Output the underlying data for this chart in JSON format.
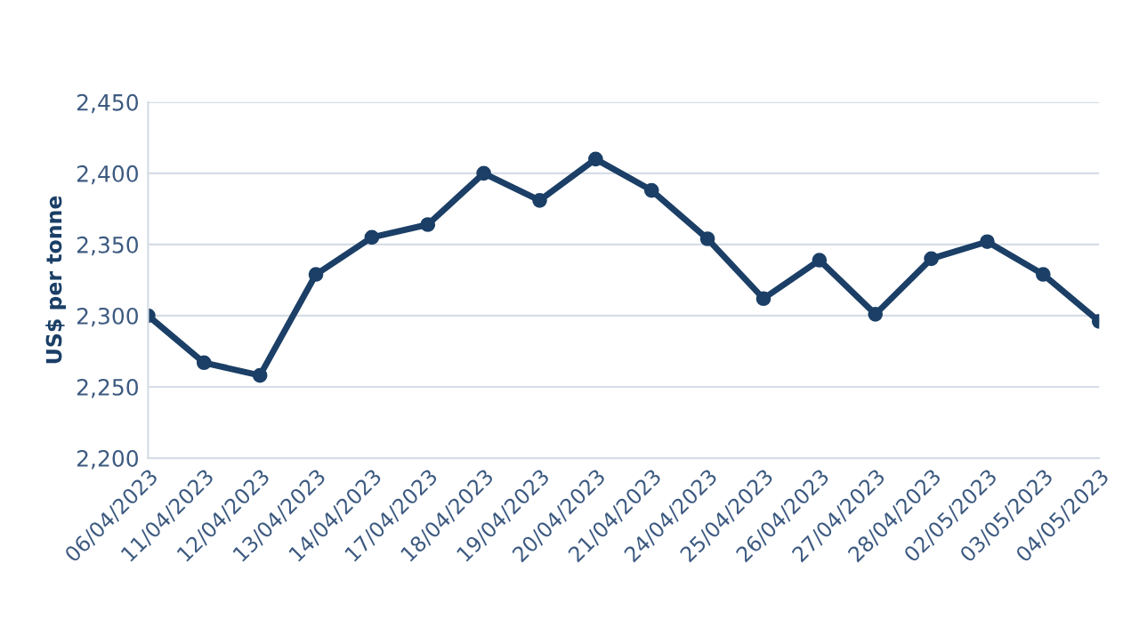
{
  "chart_data": {
    "type": "line",
    "ylabel": "US$ per tonne",
    "categories": [
      "06/04/2023",
      "11/04/2023",
      "12/04/2023",
      "13/04/2023",
      "14/04/2023",
      "17/04/2023",
      "18/04/2023",
      "19/04/2023",
      "20/04/2023",
      "21/04/2023",
      "24/04/2023",
      "25/04/2023",
      "26/04/2023",
      "27/04/2023",
      "28/04/2023",
      "02/05/2023",
      "03/05/2023",
      "04/05/2023"
    ],
    "series": [
      {
        "color": "#1b3f66",
        "values": [
          2300,
          2267,
          2258,
          2329,
          2355,
          2364,
          2400,
          2381,
          2410,
          2388,
          2354,
          2312,
          2339,
          2301,
          2340,
          2352,
          2329,
          2296
        ]
      }
    ],
    "ylim": [
      2200,
      2450
    ],
    "yticks": [
      {
        "value": 2200,
        "label": "2,200"
      },
      {
        "value": 2250,
        "label": "2,250"
      },
      {
        "value": 2300,
        "label": "2,300"
      },
      {
        "value": 2350,
        "label": "2,350"
      },
      {
        "value": 2400,
        "label": "2,400"
      },
      {
        "value": 2450,
        "label": "2,450"
      }
    ],
    "grid": "y",
    "marker": "circle",
    "line_style": "solid"
  }
}
